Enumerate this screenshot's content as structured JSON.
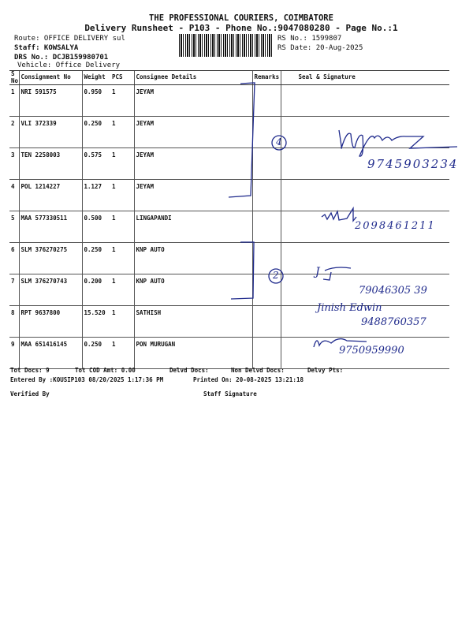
{
  "header": {
    "company": "THE PROFESSIONAL COURIERS, COIMBATORE",
    "subtitle": "Delivery Runsheet - P103 - Phone No.:9047080280 - Page No.:1",
    "route": "Route: OFFICE DELIVERY sul",
    "staff": "Staff: KOWSALYA",
    "drs_no": "DRS No.: DCJB159980701",
    "vehicle": "Vehicle: Office Delivery",
    "rs_no": "RS No.: 1599807",
    "rs_date": "RS Date: 20-Aug-2025"
  },
  "table": {
    "columns": [
      "S No",
      "Consignment No",
      "Weight",
      "PCS",
      "Consignee Details",
      "Remarks",
      "Seal & Signature"
    ],
    "rows": [
      {
        "sno": "1",
        "consignment": "NRI 591575",
        "weight": "0.950",
        "pcs": "1",
        "consignee": "JEYAM"
      },
      {
        "sno": "2",
        "consignment": "VLI 372339",
        "weight": "0.250",
        "pcs": "1",
        "consignee": "JEYAM"
      },
      {
        "sno": "3",
        "consignment": "TEN 2258003",
        "weight": "0.575",
        "pcs": "1",
        "consignee": "JEYAM"
      },
      {
        "sno": "4",
        "consignment": "POL 1214227",
        "weight": "1.127",
        "pcs": "1",
        "consignee": "JEYAM"
      },
      {
        "sno": "5",
        "consignment": "MAA 577330511",
        "weight": "0.500",
        "pcs": "1",
        "consignee": "LINGAPANDI"
      },
      {
        "sno": "6",
        "consignment": "SLM 376270275",
        "weight": "0.250",
        "pcs": "1",
        "consignee": "KNP AUTO"
      },
      {
        "sno": "7",
        "consignment": "SLM 376270743",
        "weight": "0.200",
        "pcs": "1",
        "consignee": "KNP AUTO"
      },
      {
        "sno": "8",
        "consignment": "RPT 9637800",
        "weight": "15.520",
        "pcs": "1",
        "consignee": "SATHISH"
      },
      {
        "sno": "9",
        "consignment": "MAA 651416145",
        "weight": "0.250",
        "pcs": "1",
        "consignee": "PON MURUGAN"
      }
    ]
  },
  "handwriting": {
    "remark_1": "4",
    "remark_2": "2",
    "phone_1": "9745903234",
    "phone_2": "2098461211",
    "name_7": "J",
    "phone_3": "79046305 39",
    "name_8": "Jinish Edwin",
    "phone_4": "9488760357",
    "phone_5": "9750959990",
    "ink_color": "#1f2a8c"
  },
  "footer": {
    "tot_docs": "Tot Docs:   9",
    "tot_cod": "Tot COD Amt:    0.00",
    "delvd_docs": "Delvd Docs:",
    "non_delvd_docs": "Non Delvd Docs:",
    "delvy_pts": "Delvy Pts:",
    "entered_by": "Entered By :KOUSIP103 08/20/2025 1:17:36 PM",
    "printed_on": "Printed On: 20-08-2025 13:21:18",
    "verified_by": "Verified By",
    "staff_signature": "Staff Signature"
  }
}
